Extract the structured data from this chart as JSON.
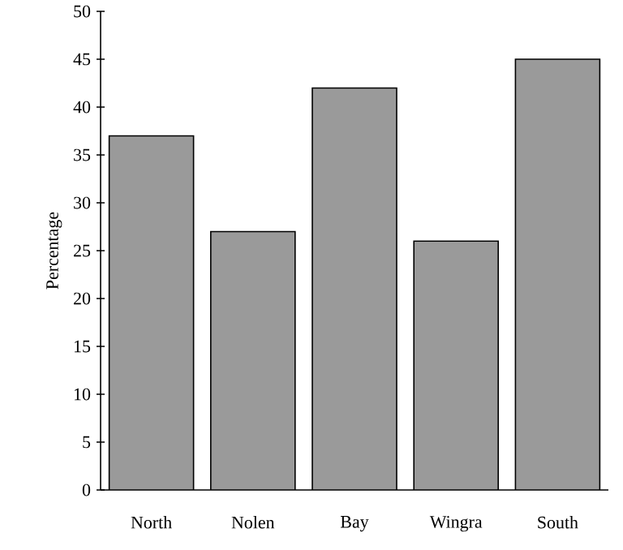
{
  "chart_data": {
    "type": "bar",
    "ylabel": "Percentage",
    "categories": [
      "North",
      "Nolen",
      "Bay",
      "Wingra",
      "South"
    ],
    "values": [
      37,
      27,
      42,
      26,
      45
    ],
    "color": "#9a9a9a",
    "ylim": [
      0,
      50
    ],
    "yticks": [
      0,
      5,
      10,
      15,
      20,
      25,
      30,
      35,
      40,
      45,
      50
    ],
    "grid": false
  }
}
